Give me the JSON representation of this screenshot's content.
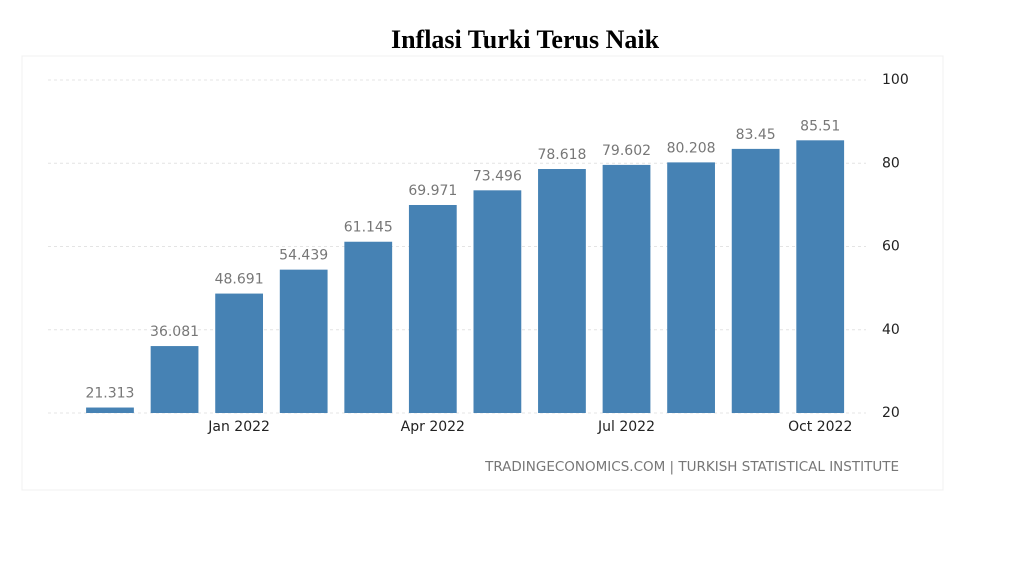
{
  "chart_data": {
    "type": "bar",
    "title": "Inflasi Turki Terus Naik",
    "categories": [
      null,
      null,
      "Jan 2022",
      null,
      null,
      "Apr 2022",
      null,
      null,
      "Jul 2022",
      null,
      null,
      "Oct 2022"
    ],
    "values": [
      21.313,
      36.081,
      48.691,
      54.439,
      61.145,
      69.971,
      73.496,
      78.618,
      79.602,
      80.208,
      83.45,
      85.51
    ],
    "color": "#4682b4",
    "ylim": [
      20,
      100
    ],
    "yticks": [
      20,
      40,
      60,
      80,
      100
    ],
    "grid": true,
    "source": "TRADINGECONOMICS.COM | TURKISH STATISTICAL INSTITUTE"
  }
}
